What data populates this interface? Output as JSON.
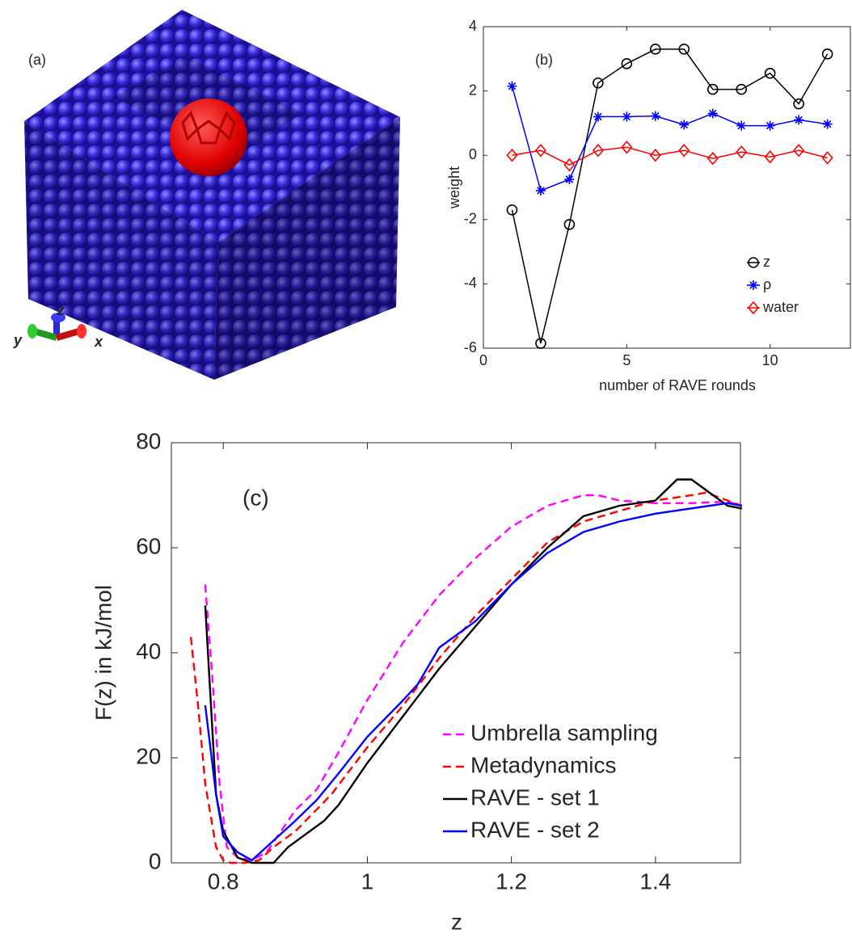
{
  "panel_a": {
    "label": "(a)",
    "axis_labels": {
      "z": "z",
      "y": "y",
      "x": "x"
    }
  },
  "chart_data": [
    {
      "type": "line",
      "annotation": "(b)",
      "ylabel": "weight",
      "xlabel": "number of RAVE rounds",
      "x": [
        1,
        2,
        3,
        4,
        5,
        6,
        7,
        8,
        9,
        10,
        11,
        12
      ],
      "series": [
        {
          "name": "z",
          "color": "#000000",
          "marker": "circle",
          "line_style": "solid",
          "values": [
            -1.7,
            -5.85,
            -2.15,
            2.25,
            2.85,
            3.3,
            3.3,
            2.05,
            2.05,
            2.55,
            1.6,
            3.15
          ]
        },
        {
          "name": "ρ",
          "color": "#0000ff",
          "marker": "star",
          "line_style": "solid",
          "values": [
            2.15,
            -1.1,
            -0.75,
            1.2,
            1.2,
            1.22,
            0.95,
            1.3,
            0.92,
            0.92,
            1.1,
            0.97
          ]
        },
        {
          "name": "water",
          "color": "#ff0000",
          "marker": "diamond",
          "line_style": "solid",
          "values": [
            0,
            0.15,
            -0.3,
            0.15,
            0.25,
            0,
            0.15,
            -0.1,
            0.1,
            -0.05,
            0.15,
            -0.08
          ]
        }
      ],
      "xlim": [
        0,
        12.8
      ],
      "xticks": [
        0,
        5,
        10
      ],
      "ylim": [
        -6,
        4
      ],
      "yticks": [
        -6,
        -4,
        -2,
        0,
        2,
        4
      ],
      "legend": "lower right",
      "grid": false
    },
    {
      "type": "line",
      "annotation": "(c)",
      "ylabel": "F(z) in kJ/mol",
      "xlabel": "z",
      "series": [
        {
          "name": "Umbrella sampling",
          "color": "#ff00ff",
          "line_style": "dashed",
          "x": [
            0.775,
            0.785,
            0.795,
            0.805,
            0.82,
            0.84,
            0.86,
            0.88,
            0.9,
            0.93,
            0.96,
            1.0,
            1.05,
            1.1,
            1.15,
            1.2,
            1.25,
            1.3,
            1.32,
            1.35,
            1.4,
            1.45,
            1.5,
            1.52
          ],
          "values": [
            53,
            35,
            15,
            3,
            1,
            0.5,
            2,
            6,
            10,
            14,
            21,
            31,
            42,
            51,
            58,
            64,
            68,
            70,
            70,
            69,
            68.5,
            68.5,
            68.8,
            68
          ]
        },
        {
          "name": "Metadynamics",
          "color": "#ff0000",
          "line_style": "dashed",
          "x": [
            0.755,
            0.765,
            0.775,
            0.79,
            0.8,
            0.81,
            0.83,
            0.85,
            0.87,
            0.9,
            0.95,
            1.0,
            1.05,
            1.1,
            1.15,
            1.2,
            1.25,
            1.3,
            1.35,
            1.4,
            1.45,
            1.47,
            1.5,
            1.52
          ],
          "values": [
            43,
            30,
            15,
            3,
            0.5,
            0,
            0,
            0.5,
            3,
            6,
            13,
            22,
            30,
            39,
            47,
            54,
            61,
            65,
            67,
            69,
            70,
            70.5,
            69,
            68
          ]
        },
        {
          "name": "RAVE - set 1",
          "color": "#000000",
          "line_style": "solid",
          "x": [
            0.775,
            0.79,
            0.8,
            0.82,
            0.84,
            0.86,
            0.87,
            0.89,
            0.92,
            0.94,
            0.96,
            1.0,
            1.05,
            1.1,
            1.15,
            1.2,
            1.25,
            1.3,
            1.35,
            1.4,
            1.43,
            1.45,
            1.47,
            1.5,
            1.52
          ],
          "values": [
            49,
            13,
            6,
            1,
            0,
            0,
            0,
            3,
            6,
            8,
            11,
            19,
            28,
            37,
            45,
            53,
            60,
            66,
            68,
            69,
            73,
            73,
            71,
            68,
            67.5
          ]
        },
        {
          "name": "RAVE - set 2",
          "color": "#0000ff",
          "line_style": "solid",
          "x": [
            0.775,
            0.79,
            0.8,
            0.82,
            0.84,
            0.86,
            0.9,
            0.93,
            0.96,
            1.0,
            1.05,
            1.07,
            1.1,
            1.15,
            1.2,
            1.25,
            1.3,
            1.35,
            1.4,
            1.45,
            1.5,
            1.52
          ],
          "values": [
            30,
            13,
            5,
            2,
            0.5,
            3,
            8,
            12,
            17,
            24,
            31,
            34,
            41,
            46,
            53,
            59,
            63,
            65,
            66.5,
            67.5,
            68.5,
            68
          ]
        }
      ],
      "xlim": [
        0.728,
        1.518
      ],
      "xticks": [
        0.8,
        1,
        1.2,
        1.4
      ],
      "ylim": [
        0,
        80
      ],
      "yticks": [
        0,
        20,
        40,
        60,
        80
      ],
      "legend": "lower right",
      "grid": false
    }
  ]
}
